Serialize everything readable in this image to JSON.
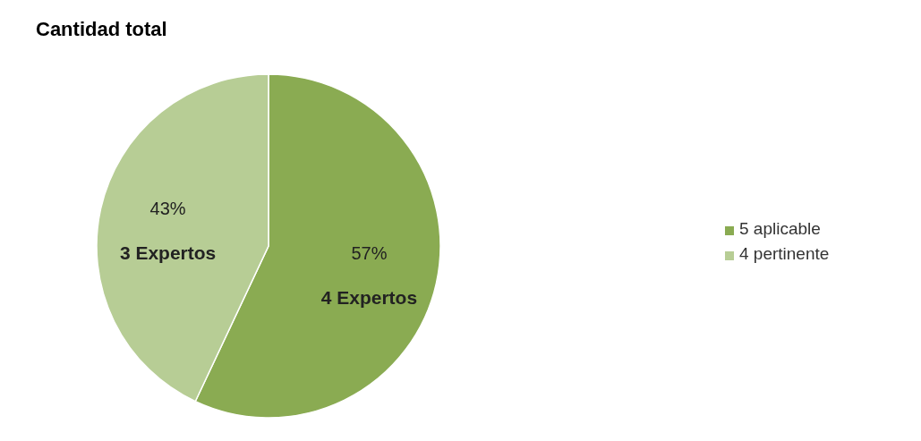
{
  "chart_data": {
    "type": "pie",
    "title": "Cantidad total",
    "categories": [
      "5 aplicable",
      "4 pertinente"
    ],
    "values": [
      57,
      43
    ],
    "colors": [
      "#8aab52",
      "#b7cd95"
    ],
    "value_labels": [
      "57%",
      "43%"
    ],
    "annotations": [
      "4 Expertos",
      "3 Expertos"
    ],
    "legend": "right"
  }
}
